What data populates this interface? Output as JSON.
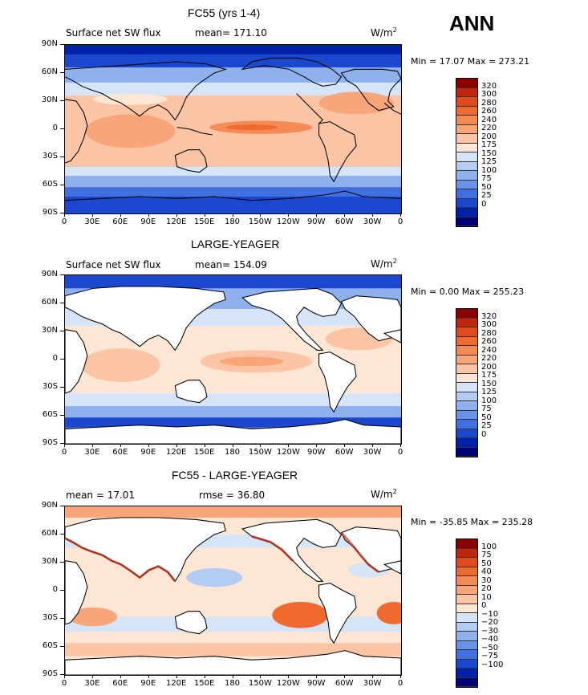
{
  "season": "ANN",
  "units": "W/m",
  "units_sup": "2",
  "lat_labels": [
    "90N",
    "60N",
    "30N",
    "0",
    "30S",
    "60S",
    "90S"
  ],
  "lon_labels": [
    "0",
    "30E",
    "60E",
    "90E",
    "120E",
    "150E",
    "180",
    "150W",
    "120W",
    "90W",
    "60W",
    "30W",
    "0"
  ],
  "panels": [
    {
      "title": "FC55 (yrs 1-4)",
      "left_label": "Surface net SW flux",
      "stat_label": "mean= 171.10",
      "minmax": "Min =   17.07 Max = 273.21",
      "colorbar": [
        "320",
        "300",
        "280",
        "260",
        "240",
        "220",
        "200",
        "175",
        "150",
        "125",
        "100",
        "75",
        "50",
        "25",
        "0"
      ],
      "colors": [
        "#8b0000",
        "#c0250e",
        "#e24a1c",
        "#f06a30",
        "#f58a55",
        "#f8a57a",
        "#fbc4a4",
        "#fde6d4",
        "#d6e4f8",
        "#b2ccf3",
        "#8eb1ee",
        "#6893ea",
        "#3f6fe0",
        "#1c48cf",
        "#0021a8",
        "#00007a"
      ]
    },
    {
      "title": "LARGE-YEAGER",
      "left_label": "Surface net SW flux",
      "stat_label": "mean= 154.09",
      "minmax": "Min =    0.00 Max = 255.23",
      "colorbar": [
        "320",
        "300",
        "280",
        "260",
        "240",
        "220",
        "200",
        "175",
        "150",
        "125",
        "100",
        "75",
        "50",
        "25",
        "0"
      ],
      "colors": [
        "#8b0000",
        "#c0250e",
        "#e24a1c",
        "#f06a30",
        "#f58a55",
        "#f8a57a",
        "#fbc4a4",
        "#fde6d4",
        "#d6e4f8",
        "#b2ccf3",
        "#8eb1ee",
        "#6893ea",
        "#3f6fe0",
        "#1c48cf",
        "#0021a8",
        "#00007a"
      ]
    },
    {
      "title": "FC55 - LARGE-YEAGER",
      "left_label": "mean =   17.01",
      "stat_label": "rmse =   36.80",
      "minmax": "Min = -35.85 Max = 235.28",
      "colorbar": [
        "100",
        "75",
        "50",
        "40",
        "30",
        "20",
        "10",
        "0",
        "−10",
        "−20",
        "−30",
        "−40",
        "−50",
        "−75",
        "−100"
      ],
      "colors": [
        "#8b0000",
        "#c0250e",
        "#e24a1c",
        "#f06a30",
        "#f58a55",
        "#f8a57a",
        "#fbc4a4",
        "#fde6d4",
        "#d6e4f8",
        "#b2ccf3",
        "#8eb1ee",
        "#6893ea",
        "#3f6fe0",
        "#1c48cf",
        "#0021a8",
        "#00007a"
      ]
    }
  ]
}
